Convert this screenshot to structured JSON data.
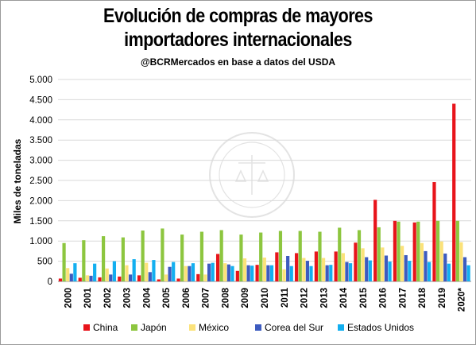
{
  "title_line1": "Evolución de compras de mayores",
  "title_line2": "importadores internacionales",
  "subtitle": "@BCRMercados  en base a datos del USDA",
  "watermark_text": "BOLSA DE COMERCIO DE ROSARIO",
  "chart_data": {
    "type": "bar",
    "ylabel": "Miles de toneladas",
    "ylim": [
      0,
      5000
    ],
    "yticks": [
      0,
      500,
      1000,
      1500,
      2000,
      2500,
      3000,
      3500,
      4000,
      4500,
      5000
    ],
    "ytick_labels": [
      "0",
      "500",
      "1.000",
      "1.500",
      "2.000",
      "2.500",
      "3.000",
      "3.500",
      "4.000",
      "4.500",
      "5.000"
    ],
    "grid": true,
    "legend_position": "bottom",
    "categories": [
      "2000",
      "2001",
      "2002",
      "2003",
      "2004",
      "2005",
      "2006",
      "2007",
      "2008",
      "2009",
      "2010",
      "2011",
      "2012",
      "2013",
      "2014",
      "2015",
      "2016",
      "2017",
      "2018",
      "2019",
      "2020*"
    ],
    "series": [
      {
        "name": "China",
        "color": "#e8141b",
        "values": [
          70,
          90,
          100,
          120,
          150,
          50,
          70,
          180,
          680,
          260,
          410,
          720,
          700,
          740,
          740,
          960,
          2020,
          1500,
          1460,
          2460,
          4400
        ]
      },
      {
        "name": "Japón",
        "color": "#8dc63f",
        "values": [
          950,
          1020,
          1120,
          1090,
          1260,
          1310,
          1160,
          1230,
          1270,
          1160,
          1210,
          1250,
          1250,
          1230,
          1330,
          1270,
          1340,
          1480,
          1480,
          1500,
          1500
        ]
      },
      {
        "name": "México",
        "color": "#fbe27a",
        "values": [
          330,
          150,
          320,
          400,
          460,
          170,
          380,
          170,
          450,
          570,
          590,
          300,
          580,
          580,
          700,
          820,
          840,
          880,
          950,
          990,
          970
        ]
      },
      {
        "name": "Corea del Sur",
        "color": "#3d5bbf",
        "values": [
          190,
          140,
          170,
          170,
          230,
          360,
          380,
          440,
          420,
          400,
          400,
          630,
          510,
          400,
          480,
          600,
          640,
          650,
          750,
          690,
          600
        ]
      },
      {
        "name": "Estados Unidos",
        "color": "#13aff0",
        "values": [
          450,
          440,
          500,
          550,
          530,
          480,
          450,
          460,
          380,
          390,
          400,
          380,
          380,
          410,
          450,
          520,
          490,
          510,
          480,
          440,
          400
        ]
      }
    ]
  }
}
